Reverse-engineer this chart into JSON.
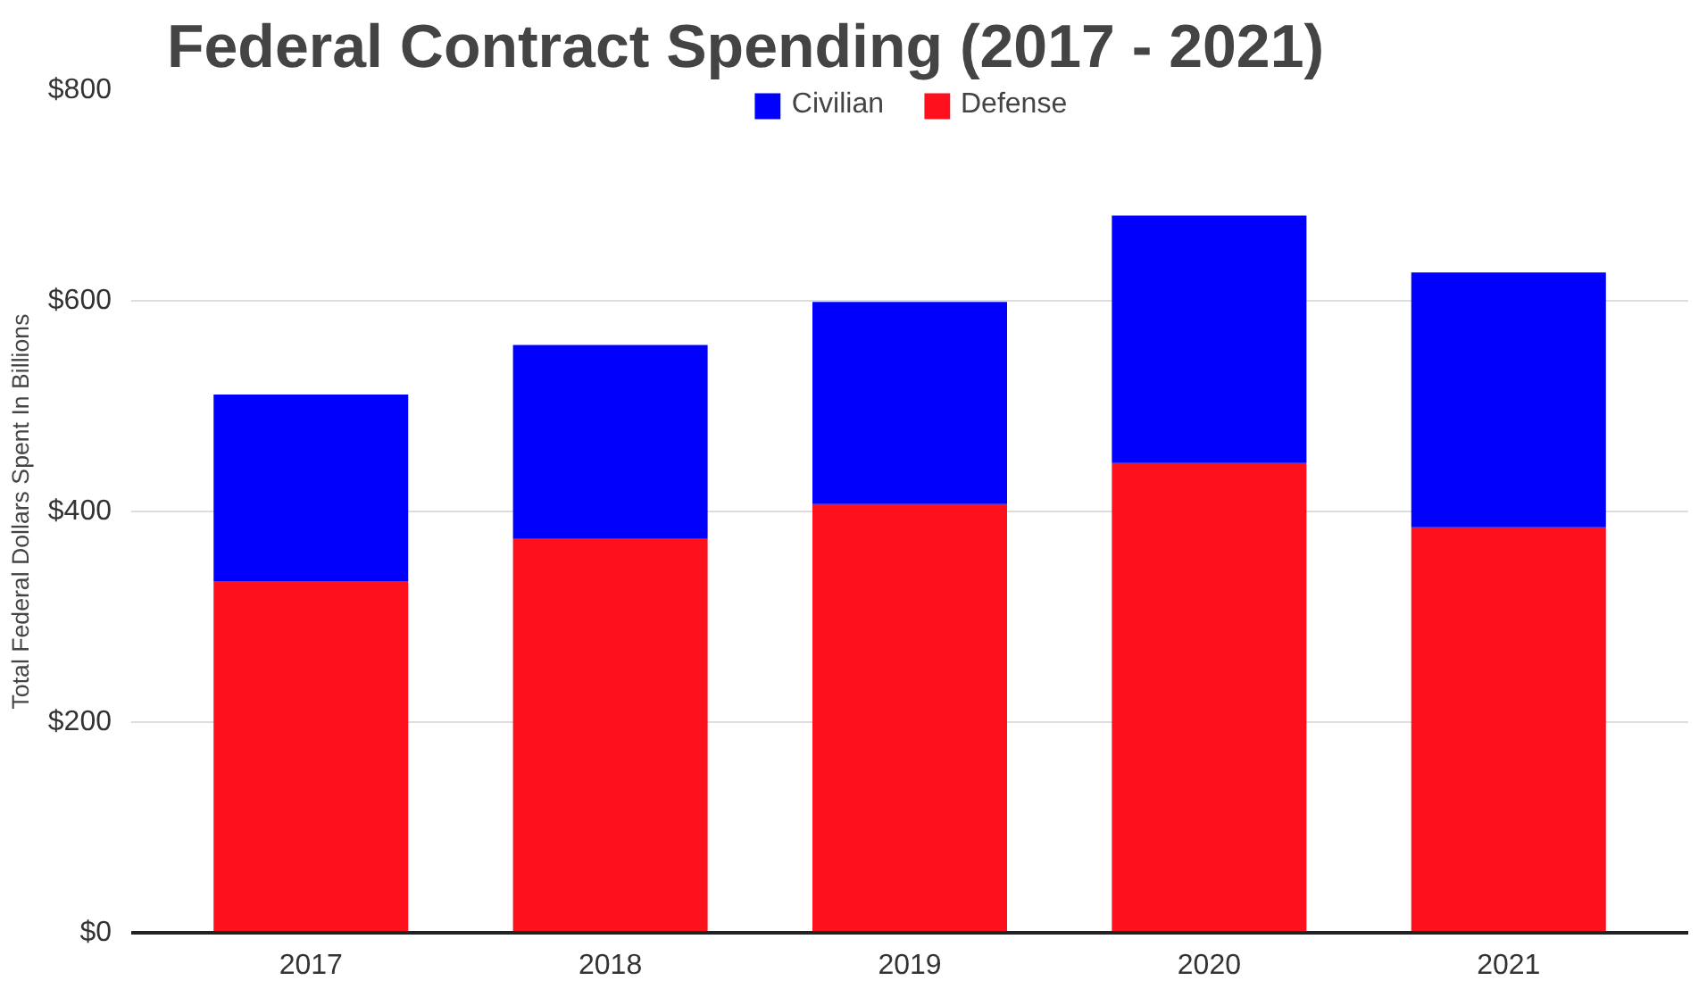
{
  "chart_data": {
    "type": "bar",
    "title": "Federal Contract Spending (2017 - 2021)",
    "ylabel": "Total Federal Dollars Spent In Billions",
    "categories": [
      "2017",
      "2018",
      "2019",
      "2020",
      "2021"
    ],
    "stacked": true,
    "series": [
      {
        "name": "Defense",
        "color": "#fc111c",
        "values": [
          334,
          374,
          407,
          446,
          385
        ]
      },
      {
        "name": "Civilian",
        "color": "#0000fc",
        "values": [
          177,
          184,
          192,
          235,
          242
        ]
      }
    ],
    "ylim": [
      0,
      800
    ],
    "yticks": [
      {
        "value": 0,
        "label": "$0"
      },
      {
        "value": 200,
        "label": "$200"
      },
      {
        "value": 400,
        "label": "$400"
      },
      {
        "value": 600,
        "label": "$600"
      },
      {
        "value": 800,
        "label": "$800"
      }
    ],
    "grid": "y",
    "legend": "top"
  }
}
